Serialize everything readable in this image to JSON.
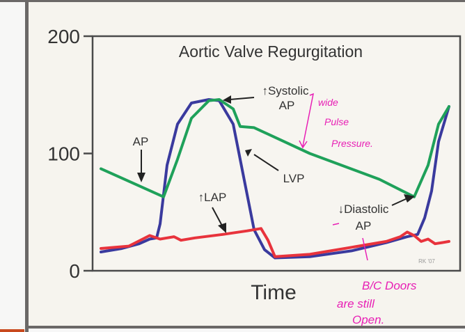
{
  "chart_data": {
    "type": "line",
    "title": "Aortic Valve Regurgitation",
    "xlabel": "Time",
    "ylabel": "",
    "ylim": [
      0,
      200
    ],
    "xlim": [
      0,
      100
    ],
    "yticks": [
      "200",
      "100",
      "0"
    ],
    "ytick_values": [
      200,
      100,
      0
    ],
    "credit": "RK '07",
    "series": [
      {
        "name": "AP",
        "color": "#1fa15a",
        "points": [
          [
            0,
            87
          ],
          [
            18,
            63
          ],
          [
            22,
            95
          ],
          [
            26,
            130
          ],
          [
            31,
            145
          ],
          [
            34,
            146
          ],
          [
            38,
            138
          ],
          [
            40,
            123
          ],
          [
            44,
            122
          ],
          [
            60,
            100
          ],
          [
            80,
            78
          ],
          [
            90,
            63
          ],
          [
            94,
            90
          ],
          [
            97,
            125
          ],
          [
            100,
            140
          ]
        ]
      },
      {
        "name": "LVP",
        "color": "#3a3a9e",
        "points": [
          [
            0,
            16
          ],
          [
            6,
            19
          ],
          [
            11,
            23
          ],
          [
            14,
            27
          ],
          [
            16,
            28
          ],
          [
            17,
            40
          ],
          [
            19,
            90
          ],
          [
            22,
            125
          ],
          [
            26,
            143
          ],
          [
            31,
            146
          ],
          [
            34,
            145
          ],
          [
            38,
            125
          ],
          [
            41,
            80
          ],
          [
            44,
            35
          ],
          [
            47,
            18
          ],
          [
            50,
            11
          ],
          [
            60,
            12
          ],
          [
            72,
            17
          ],
          [
            82,
            24
          ],
          [
            88,
            29
          ],
          [
            91,
            31
          ],
          [
            93,
            45
          ],
          [
            95,
            68
          ],
          [
            97,
            110
          ],
          [
            100,
            140
          ]
        ]
      },
      {
        "name": "LAP",
        "color": "#e8333c",
        "points": [
          [
            0,
            19
          ],
          [
            8,
            21
          ],
          [
            12,
            27
          ],
          [
            14,
            30
          ],
          [
            17,
            27
          ],
          [
            19,
            28
          ],
          [
            21,
            29
          ],
          [
            23,
            26
          ],
          [
            27,
            28
          ],
          [
            35,
            31
          ],
          [
            42,
            34
          ],
          [
            46,
            36
          ],
          [
            48,
            26
          ],
          [
            50,
            12
          ],
          [
            60,
            14
          ],
          [
            72,
            20
          ],
          [
            82,
            25
          ],
          [
            86,
            29
          ],
          [
            88,
            33
          ],
          [
            90,
            30
          ],
          [
            92,
            25
          ],
          [
            94,
            27
          ],
          [
            96,
            23
          ],
          [
            98,
            24
          ],
          [
            100,
            25
          ]
        ]
      }
    ],
    "annotations": [
      {
        "text": "AP",
        "target": "AP"
      },
      {
        "text": "↑Systolic",
        "line2": "AP"
      },
      {
        "text": "LVP"
      },
      {
        "text": "↑LAP"
      },
      {
        "text": "↓Diastolic",
        "line2": "AP"
      }
    ],
    "handwritten": {
      "wide": [
        "wide",
        "Pulse",
        "Pressure."
      ],
      "doors": [
        "B/C Doors",
        "are still",
        "Open."
      ]
    },
    "colors": {
      "green": "#1fa15a",
      "blue": "#3a3a9e",
      "red": "#e8333c",
      "ink": "#e81fb5"
    }
  }
}
